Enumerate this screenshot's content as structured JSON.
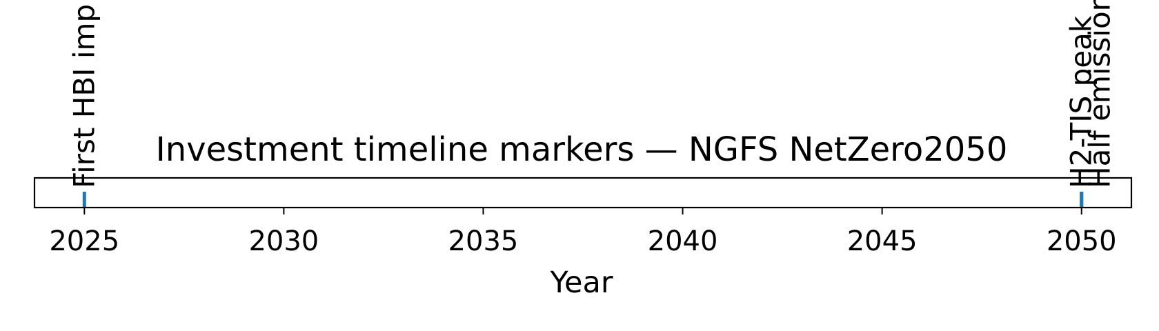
{
  "chart_data": {
    "type": "timeline",
    "title": "Investment timeline markers — NGFS NetZero2050",
    "xlabel": "Year",
    "ylabel": "",
    "xlim": [
      2023.75,
      2051.25
    ],
    "xticks": [
      2025,
      2030,
      2035,
      2040,
      2045,
      2050
    ],
    "grid": false,
    "marker_color": "#1f77b4",
    "markers": [
      {
        "x": 2025,
        "label": "First HBI imp"
      },
      {
        "x": 2050,
        "label": "H2-TIS peak"
      },
      {
        "x": 2050,
        "label": "Half emission"
      }
    ]
  }
}
